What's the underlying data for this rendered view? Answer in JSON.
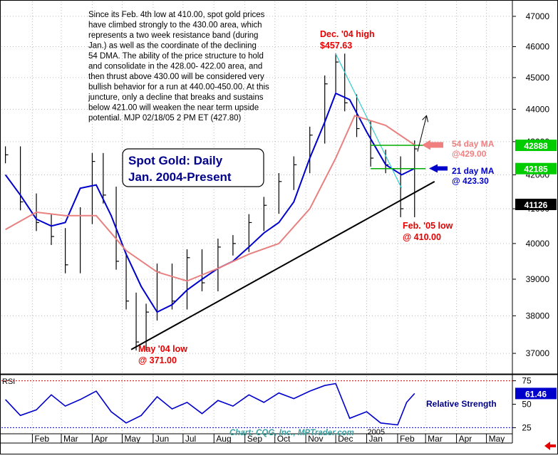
{
  "chart_data": [
    {
      "type": "line",
      "panel": "price",
      "title": "Spot Gold: Daily",
      "subtitle": "Jan. 2004-Present",
      "price_scale": "log",
      "ylim": [
        36500,
        47500
      ],
      "y_ticks": [
        "47000",
        "46000",
        "45000",
        "44000",
        "43000",
        "42000",
        "41000",
        "40000",
        "39000",
        "38000",
        "37000"
      ],
      "x_labels": [
        "Feb",
        "Mar",
        "Apr",
        "May",
        "Jun",
        "Jul",
        "Aug",
        "Sep",
        "Oct",
        "Nov",
        "Dec",
        "Jan",
        "Feb",
        "Mar",
        "Apr",
        "May"
      ],
      "year_label": "2005",
      "grid": true,
      "series": [
        {
          "name": "",
          "kind": "ohlc_close",
          "color": "#000000",
          "x": [
            "2004-01-05",
            "2004-01-20",
            "2004-02-05",
            "2004-02-20",
            "2004-03-05",
            "2004-03-20",
            "2004-04-01",
            "2004-04-12",
            "2004-04-25",
            "2004-05-05",
            "2004-05-15",
            "2004-05-25",
            "2004-06-05",
            "2004-06-20",
            "2004-07-05",
            "2004-07-20",
            "2004-08-05",
            "2004-08-20",
            "2004-09-05",
            "2004-09-20",
            "2004-10-05",
            "2004-10-20",
            "2004-11-05",
            "2004-11-20",
            "2004-12-01",
            "2004-12-10",
            "2004-12-22",
            "2005-01-05",
            "2005-01-20",
            "2005-02-04",
            "2005-02-18"
          ],
          "y": [
            42600,
            41200,
            40600,
            40200,
            39400,
            40800,
            42400,
            41400,
            39500,
            38400,
            37300,
            38100,
            39200,
            38400,
            39600,
            38900,
            39900,
            40000,
            40600,
            41100,
            41800,
            42300,
            43200,
            44800,
            45500,
            44200,
            43400,
            42500,
            42300,
            41000,
            42780
          ]
        },
        {
          "name": "21 day MA",
          "color": "#0000cc",
          "x": [
            "2004-01-05",
            "2004-01-20",
            "2004-02-05",
            "2004-02-20",
            "2004-03-05",
            "2004-03-20",
            "2004-04-05",
            "2004-04-20",
            "2004-05-05",
            "2004-05-20",
            "2004-06-05",
            "2004-06-20",
            "2004-07-05",
            "2004-07-20",
            "2004-08-05",
            "2004-08-20",
            "2004-09-05",
            "2004-09-20",
            "2004-10-05",
            "2004-10-20",
            "2004-11-05",
            "2004-11-20",
            "2004-12-01",
            "2004-12-15",
            "2005-01-01",
            "2005-01-20",
            "2005-02-05",
            "2005-02-18"
          ],
          "y": [
            42000,
            41400,
            40700,
            40500,
            40600,
            41600,
            41700,
            40800,
            39700,
            38800,
            38100,
            38300,
            38700,
            39000,
            39300,
            39500,
            39900,
            40300,
            40600,
            41200,
            42500,
            43600,
            44500,
            44300,
            43300,
            42300,
            42000,
            42190
          ]
        },
        {
          "name": "54 day MA",
          "color": "#e88080",
          "x": [
            "2004-01-05",
            "2004-02-05",
            "2004-03-05",
            "2004-04-05",
            "2004-05-05",
            "2004-06-05",
            "2004-07-05",
            "2004-08-05",
            "2004-09-05",
            "2004-10-05",
            "2004-11-05",
            "2004-12-01",
            "2004-12-20",
            "2005-01-20",
            "2005-02-18"
          ],
          "y": [
            40400,
            40900,
            40800,
            40800,
            39800,
            39200,
            38950,
            39300,
            39700,
            40000,
            41000,
            42500,
            43800,
            43500,
            42900
          ]
        }
      ],
      "price_flags": [
        {
          "label": "42888",
          "value": 42888,
          "color": "#00cc00"
        },
        {
          "label": "42185",
          "value": 42185,
          "color": "#00cc00"
        },
        {
          "label": "41126",
          "value": 41126,
          "color": "#000000"
        }
      ],
      "annotations": [
        {
          "id": "commentary",
          "lines": [
            "Since its Feb. 4th low at 410.00, spot gold prices",
            "have climbed strongly to the 430.00 area, which",
            "represents a two week resistance band (during",
            "Jan.) as well as the coordinate of the declining",
            "54 DMA. The ability of the price structure to hold",
            "and consolidate in the 428.00- 422.00 area, and",
            "then thrust above 430.00 will be considered very",
            "bullish behavior for a run at 440.00-450.00. At this",
            "juncture, only a decline that breaks and sustains",
            "below 421.00 will weaken the near term upside",
            "potential.  MJP 02/18/05  2 PM ET (427.80)"
          ],
          "color": "#000000"
        },
        {
          "id": "dec-high",
          "lines": [
            "Dec. '04 high",
            "$457.63"
          ],
          "color": "#e60000"
        },
        {
          "id": "may-low",
          "lines": [
            "May '04 low",
            "@ 371.00"
          ],
          "color": "#e60000"
        },
        {
          "id": "feb-low",
          "lines": [
            "Feb. '05 low",
            "@ 410.00"
          ],
          "color": "#e60000"
        },
        {
          "id": "ma54",
          "lines": [
            "54 day MA",
            "@429.00"
          ],
          "color": "#f08080"
        },
        {
          "id": "ma21",
          "lines": [
            "21 day MA",
            "@ 423.30"
          ],
          "color": "#0000cc"
        }
      ],
      "trendlines": [
        {
          "name": "uptrend support",
          "from": [
            "2004-05-10",
            37100
          ],
          "to": [
            "2005-03-10",
            41800
          ],
          "color": "#000000"
        },
        {
          "name": "downtrend from Dec high",
          "from": [
            "2004-12-01",
            45763
          ],
          "to": [
            "2005-02-05",
            41600
          ],
          "color": "#33cccc"
        }
      ],
      "credit": "Chart: CQG, Inc., MPTrader.com"
    },
    {
      "type": "line",
      "panel": "rsi",
      "title": "RSI",
      "ylim": [
        20,
        80
      ],
      "y_ticks": [
        "75",
        "50",
        "25"
      ],
      "reference_levels": [
        75,
        25
      ],
      "last_value_label": "61.46",
      "series": [
        {
          "name": "Relative Strength",
          "color": "#0000cc",
          "x": [
            "2004-01-05",
            "2004-01-20",
            "2004-02-05",
            "2004-02-20",
            "2004-03-05",
            "2004-03-20",
            "2004-04-05",
            "2004-04-20",
            "2004-05-05",
            "2004-05-20",
            "2004-06-05",
            "2004-06-20",
            "2004-07-05",
            "2004-07-20",
            "2004-08-05",
            "2004-08-20",
            "2004-09-05",
            "2004-09-20",
            "2004-10-05",
            "2004-10-20",
            "2004-11-05",
            "2004-11-20",
            "2004-12-01",
            "2004-12-15",
            "2005-01-01",
            "2005-01-15",
            "2005-02-01",
            "2005-02-10",
            "2005-02-18"
          ],
          "y": [
            55,
            38,
            44,
            60,
            48,
            55,
            64,
            42,
            30,
            38,
            58,
            45,
            52,
            40,
            54,
            48,
            60,
            52,
            62,
            56,
            64,
            70,
            72,
            35,
            42,
            30,
            28,
            52,
            61.46
          ]
        }
      ]
    }
  ]
}
